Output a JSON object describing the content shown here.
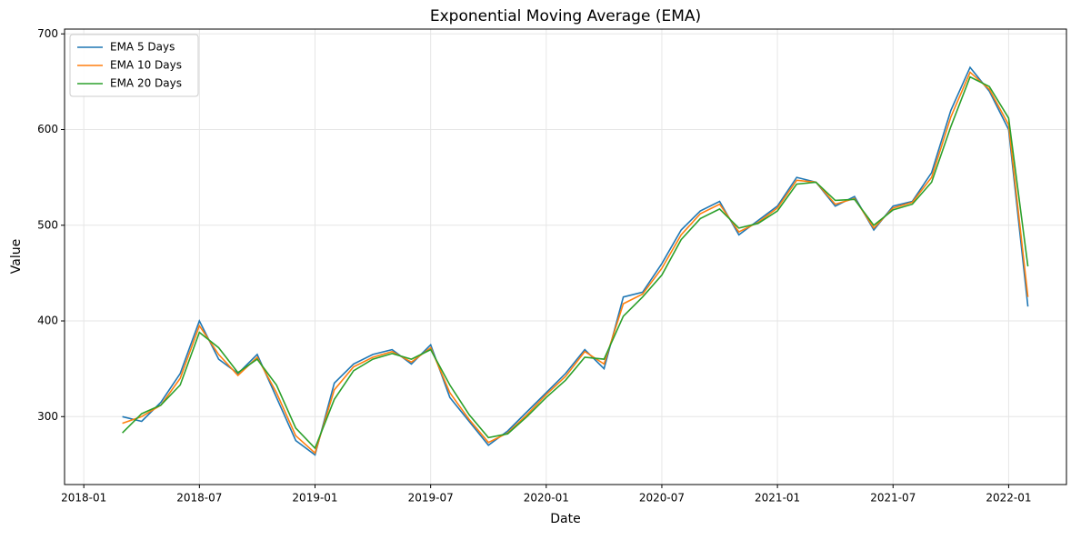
{
  "chart_data": {
    "type": "line",
    "title": "Exponential Moving Average (EMA)",
    "x_label": "Date",
    "y_label": "Value",
    "x": [
      "2018-03",
      "2018-04",
      "2018-05",
      "2018-06",
      "2018-07",
      "2018-08",
      "2018-09",
      "2018-10",
      "2018-11",
      "2018-12",
      "2019-01",
      "2019-02",
      "2019-03",
      "2019-04",
      "2019-05",
      "2019-06",
      "2019-07",
      "2019-08",
      "2019-09",
      "2019-10",
      "2019-11",
      "2019-12",
      "2020-01",
      "2020-02",
      "2020-03",
      "2020-04",
      "2020-05",
      "2020-06",
      "2020-07",
      "2020-08",
      "2020-09",
      "2020-10",
      "2020-11",
      "2020-12",
      "2021-01",
      "2021-02",
      "2021-03",
      "2021-04",
      "2021-05",
      "2021-06",
      "2021-07",
      "2021-08",
      "2021-09",
      "2021-10",
      "2021-11",
      "2021-12",
      "2022-01",
      "2022-02"
    ],
    "series": [
      {
        "name": "EMA 5 Days",
        "color": "#1f77b4",
        "values": [
          300,
          295,
          315,
          345,
          400,
          360,
          345,
          365,
          320,
          275,
          260,
          335,
          355,
          365,
          370,
          355,
          375,
          320,
          295,
          270,
          285,
          305,
          325,
          345,
          370,
          350,
          425,
          430,
          460,
          495,
          515,
          525,
          490,
          505,
          520,
          550,
          545,
          520,
          530,
          495,
          520,
          525,
          555,
          620,
          665,
          640,
          600,
          415
        ]
      },
      {
        "name": "EMA 10 Days",
        "color": "#ff7f0e",
        "values": [
          293,
          300,
          312,
          340,
          395,
          365,
          343,
          362,
          325,
          280,
          262,
          328,
          352,
          362,
          368,
          357,
          372,
          325,
          297,
          273,
          283,
          302,
          323,
          342,
          368,
          355,
          418,
          428,
          455,
          490,
          512,
          522,
          493,
          503,
          518,
          547,
          545,
          522,
          528,
          497,
          518,
          524,
          550,
          613,
          660,
          642,
          605,
          425
        ]
      },
      {
        "name": "EMA 20 Days",
        "color": "#2ca02c",
        "values": [
          283,
          303,
          312,
          333,
          388,
          372,
          346,
          360,
          333,
          288,
          267,
          318,
          348,
          360,
          366,
          360,
          370,
          333,
          302,
          278,
          282,
          300,
          320,
          338,
          362,
          360,
          405,
          425,
          448,
          485,
          507,
          517,
          497,
          502,
          515,
          543,
          545,
          526,
          527,
          500,
          516,
          522,
          545,
          603,
          655,
          645,
          612,
          457
        ]
      }
    ],
    "xlim": [
      "2017-12",
      "2022-04"
    ],
    "xticks": [
      "2018-01",
      "2018-07",
      "2019-01",
      "2019-07",
      "2020-01",
      "2020-07",
      "2021-01",
      "2021-07",
      "2022-01"
    ],
    "ylim": [
      229,
      705
    ],
    "yticks": [
      300,
      400,
      500,
      600,
      700
    ],
    "grid": true,
    "legend": "upper left"
  }
}
